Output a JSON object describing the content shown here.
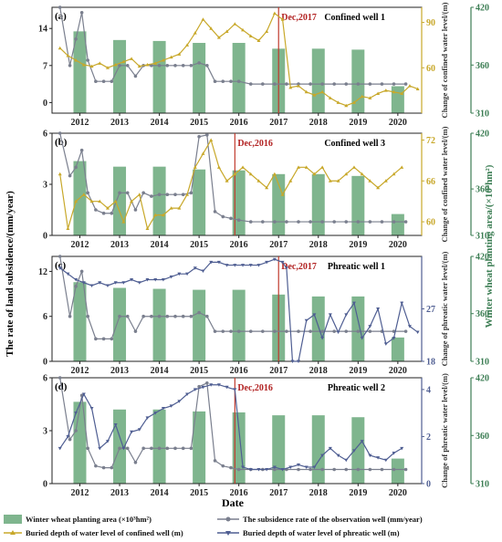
{
  "figure": {
    "date_label": "Date",
    "left_axis_label": "The rate of land subsidence/(mm/year)",
    "right_axis_label": "Winter wheat planting area/(×10³hm²)",
    "legend": {
      "area": "Winter wheat planting area (×10³hm²)",
      "subsidence": "The subsidence rate of the observation well (mm/year)",
      "confined": "Buried depth of water level of confined well (m)",
      "phreatic": "Buried depth of water level of phreatic well (m)"
    }
  },
  "colors": {
    "bar": "#7fb58e",
    "subsidence": "#7a7f8e",
    "confined": "#c8a82a",
    "phreatic": "#4f5e92",
    "marker": "#c0392b"
  },
  "chart_data": [
    {
      "type": "bar",
      "panel": "(a)",
      "title": "Confined well 1",
      "annotation": "Dec,2017",
      "annotation_x": 2017.0,
      "xlim": [
        2011.3,
        2020.6
      ],
      "categories": [
        "2012",
        "2013",
        "2014",
        "2015",
        "2016",
        "2017",
        "2018",
        "2019",
        "2020"
      ],
      "left_axis": {
        "ylim": [
          -2,
          18
        ],
        "ticks": [
          0,
          7,
          14
        ],
        "tick_labels": [
          "0",
          "7",
          "14"
        ]
      },
      "right_axis": {
        "label": "Change of confined water level/(m)",
        "ylim": [
          30,
          100
        ],
        "ticks": [
          60,
          90
        ],
        "tick_labels": [
          "60",
          "90"
        ],
        "color": "#c8a82a"
      },
      "area_axis": {
        "ylim": [
          310,
          420
        ],
        "ticks": [
          310,
          360,
          420
        ],
        "tick_labels": [
          "310",
          "360",
          "420"
        ]
      },
      "bars": [
        395,
        386,
        385,
        383,
        383,
        377,
        377,
        376,
        338
      ],
      "subsidence": {
        "x": [
          2011.5,
          2011.75,
          2011.9,
          2012.05,
          2012.2,
          2012.4,
          2012.6,
          2012.8,
          2013.0,
          2013.2,
          2013.4,
          2013.6,
          2013.8,
          2014.0,
          2014.2,
          2014.4,
          2014.6,
          2014.8,
          2015.0,
          2015.2,
          2015.4,
          2015.6,
          2015.8,
          2016.0,
          2016.3,
          2016.6,
          2016.9,
          2017.2,
          2017.5,
          2017.8,
          2018.1,
          2018.4,
          2018.7,
          2019.0,
          2019.3,
          2019.6,
          2019.9,
          2020.2
        ],
        "y": [
          18,
          7,
          12,
          17,
          8,
          4,
          4,
          4,
          7,
          7,
          5,
          7,
          7,
          7,
          7,
          7,
          7,
          7,
          7.5,
          7,
          4,
          4,
          4,
          4,
          3.5,
          3.5,
          3.5,
          3.5,
          3.5,
          3.5,
          3.5,
          3.5,
          3.5,
          3.5,
          3.5,
          3.5,
          3.5,
          3.5
        ]
      },
      "confined": {
        "x": [
          2011.5,
          2011.7,
          2011.9,
          2012.1,
          2012.3,
          2012.5,
          2012.7,
          2012.9,
          2013.1,
          2013.3,
          2013.5,
          2013.7,
          2013.9,
          2014.1,
          2014.3,
          2014.5,
          2014.7,
          2014.9,
          2015.1,
          2015.3,
          2015.5,
          2015.7,
          2015.9,
          2016.1,
          2016.3,
          2016.5,
          2016.7,
          2016.9,
          2017.1,
          2017.3,
          2017.5,
          2017.7,
          2017.9,
          2018.1,
          2018.3,
          2018.5,
          2018.7,
          2018.9,
          2019.1,
          2019.3,
          2019.5,
          2019.7,
          2019.9,
          2020.1,
          2020.3,
          2020.5
        ],
        "y": [
          73,
          68,
          65,
          62,
          61,
          63,
          60,
          62,
          64,
          66,
          61,
          62,
          63,
          65,
          67,
          69,
          75,
          83,
          92,
          86,
          80,
          84,
          89,
          85,
          81,
          78,
          84,
          96,
          92,
          47,
          48,
          44,
          42,
          44,
          40,
          37,
          35,
          37,
          41,
          40,
          43,
          45,
          44,
          43,
          48,
          46
        ]
      }
    },
    {
      "type": "bar",
      "panel": "(b)",
      "title": "Confined well 3",
      "annotation": "Dec,2016",
      "annotation_x": 2015.9,
      "xlim": [
        2011.3,
        2020.6
      ],
      "categories": [
        "2012",
        "2013",
        "2014",
        "2015",
        "2016",
        "2017",
        "2018",
        "2019",
        "2020"
      ],
      "left_axis": {
        "ylim": [
          0,
          6
        ],
        "ticks": [
          0,
          3,
          6
        ],
        "tick_labels": [
          "0",
          "3",
          "6"
        ]
      },
      "right_axis": {
        "label": "Change of confined water level/(m)",
        "ylim": [
          58,
          73
        ],
        "ticks": [
          60,
          66,
          72
        ],
        "tick_labels": [
          "60",
          "66",
          "72"
        ],
        "color": "#c8a82a"
      },
      "area_axis": {
        "ylim": [
          310,
          420
        ],
        "ticks": [
          310,
          360,
          420
        ],
        "tick_labels": [
          "310",
          "360",
          "420"
        ]
      },
      "bars": [
        390,
        384,
        384,
        381,
        380,
        376,
        376,
        374,
        333
      ],
      "subsidence": {
        "x": [
          2011.5,
          2011.75,
          2011.9,
          2012.05,
          2012.2,
          2012.4,
          2012.6,
          2012.8,
          2013.0,
          2013.2,
          2013.4,
          2013.6,
          2013.8,
          2014.0,
          2014.2,
          2014.4,
          2014.6,
          2014.8,
          2015.0,
          2015.2,
          2015.4,
          2015.6,
          2015.8,
          2016.0,
          2016.3,
          2016.6,
          2016.9,
          2017.2,
          2017.5,
          2017.8,
          2018.1,
          2018.4,
          2018.7,
          2019.0,
          2019.3,
          2019.6,
          2019.9,
          2020.2
        ],
        "y": [
          6,
          3.5,
          4,
          5,
          2.5,
          1.5,
          1.3,
          1.3,
          2.5,
          2.5,
          1.5,
          2.5,
          2.3,
          2.4,
          2.4,
          2.4,
          2.4,
          2.5,
          5.8,
          5.9,
          1.4,
          1.1,
          1,
          0.9,
          0.8,
          0.8,
          0.8,
          0.8,
          0.8,
          0.8,
          0.8,
          0.8,
          0.8,
          0.8,
          0.8,
          0.8,
          0.8,
          0.8
        ]
      },
      "confined": {
        "x": [
          2011.5,
          2011.7,
          2011.9,
          2012.1,
          2012.3,
          2012.5,
          2012.7,
          2012.9,
          2013.1,
          2013.3,
          2013.5,
          2013.7,
          2013.9,
          2014.1,
          2014.3,
          2014.5,
          2014.7,
          2014.9,
          2015.1,
          2015.3,
          2015.5,
          2015.7,
          2015.9,
          2016.1,
          2016.3,
          2016.5,
          2016.7,
          2016.9,
          2017.1,
          2017.3,
          2017.5,
          2017.7,
          2017.9,
          2018.1,
          2018.3,
          2018.5,
          2018.7,
          2018.9,
          2019.1,
          2019.3,
          2019.5,
          2019.7,
          2019.9,
          2020.1
        ],
        "y": [
          67,
          59,
          63,
          64,
          63,
          63,
          62,
          63,
          60,
          63,
          64,
          59,
          61,
          61,
          62,
          62,
          64,
          68,
          70,
          72,
          68,
          66,
          67,
          68,
          67,
          66,
          65,
          67,
          64,
          66,
          68,
          68,
          67,
          68,
          66,
          66,
          67,
          68,
          67,
          66,
          65,
          66,
          67,
          68
        ]
      }
    },
    {
      "type": "bar",
      "panel": "(c)",
      "title": "Phreatic well 1",
      "annotation": "Dec,2017",
      "annotation_x": 2017.0,
      "xlim": [
        2011.3,
        2020.6
      ],
      "categories": [
        "2012",
        "2013",
        "2014",
        "2015",
        "2016",
        "2017",
        "2018",
        "2019",
        "2020"
      ],
      "left_axis": {
        "ylim": [
          0,
          14
        ],
        "ticks": [
          0,
          6,
          12
        ],
        "tick_labels": [
          "0",
          "6",
          "12"
        ]
      },
      "right_axis": {
        "label": "Change of phreatic water level/(m)",
        "ylim": [
          18,
          36
        ],
        "ticks": [
          18,
          27
        ],
        "tick_labels": [
          "18",
          "27"
        ],
        "color": "#4f5e92"
      },
      "area_axis": {
        "ylim": [
          310,
          420
        ],
        "ticks": [
          310,
          360,
          420
        ],
        "tick_labels": [
          "310",
          "360",
          "420"
        ]
      },
      "bars": [
        393,
        387,
        386,
        385,
        385,
        380,
        378,
        378,
        335
      ],
      "subsidence": {
        "x": [
          2011.5,
          2011.75,
          2011.9,
          2012.05,
          2012.2,
          2012.4,
          2012.6,
          2012.8,
          2013.0,
          2013.2,
          2013.4,
          2013.6,
          2013.8,
          2014.0,
          2014.2,
          2014.4,
          2014.6,
          2014.8,
          2015.0,
          2015.2,
          2015.4,
          2015.6,
          2015.8,
          2016.0,
          2016.3,
          2016.6,
          2016.9,
          2017.2,
          2017.5,
          2017.8,
          2018.1,
          2018.4,
          2018.7,
          2019.0,
          2019.3,
          2019.6,
          2019.9,
          2020.2
        ],
        "y": [
          14,
          6,
          10,
          12,
          6,
          3,
          3,
          3,
          6,
          6,
          4,
          6,
          6,
          6,
          6,
          6,
          6,
          6,
          6.5,
          6,
          4,
          4,
          4,
          4,
          4,
          4,
          4,
          4,
          4,
          4,
          4,
          4,
          4,
          4,
          4,
          4,
          4,
          4
        ],
        "extra": true
      },
      "phreatic": {
        "x": [
          2011.5,
          2011.7,
          2011.9,
          2012.1,
          2012.3,
          2012.5,
          2012.7,
          2012.9,
          2013.1,
          2013.3,
          2013.5,
          2013.7,
          2013.9,
          2014.1,
          2014.3,
          2014.5,
          2014.7,
          2014.9,
          2015.1,
          2015.3,
          2015.5,
          2015.7,
          2015.9,
          2016.1,
          2016.3,
          2016.5,
          2016.7,
          2016.9,
          2017.1,
          2017.2,
          2017.35,
          2017.5,
          2017.7,
          2017.9,
          2018.1,
          2018.3,
          2018.5,
          2018.7,
          2018.9,
          2019.1,
          2019.3,
          2019.5,
          2019.7,
          2019.9,
          2020.1,
          2020.3,
          2020.5
        ],
        "y": [
          34,
          33,
          32,
          31.5,
          31,
          31.5,
          31,
          31.5,
          31.5,
          32,
          31.5,
          32,
          32,
          32,
          32.5,
          33,
          33,
          34,
          33.5,
          35,
          35,
          34.5,
          34.5,
          34.5,
          34.5,
          34.5,
          35,
          35.5,
          35,
          34,
          18,
          18,
          25,
          26,
          22,
          26,
          23,
          26,
          28,
          22,
          24,
          27,
          21,
          22,
          28,
          24,
          23
        ]
      }
    },
    {
      "type": "bar",
      "panel": "(d)",
      "title": "Phreatic well 2",
      "annotation": "Dec,2016",
      "annotation_x": 2015.9,
      "xlim": [
        2011.3,
        2020.6
      ],
      "categories": [
        "2012",
        "2013",
        "2014",
        "2015",
        "2016",
        "2017",
        "2018",
        "2019",
        "2020"
      ],
      "left_axis": {
        "ylim": [
          0,
          6
        ],
        "ticks": [
          0,
          3,
          6
        ],
        "tick_labels": [
          "0",
          "3",
          "6"
        ]
      },
      "right_axis": {
        "label": "Change of phreatic water level/(m)",
        "ylim": [
          0,
          4.5
        ],
        "ticks": [
          0,
          2,
          4
        ],
        "tick_labels": [
          "0",
          "2",
          "4"
        ],
        "color": "#4f5e92"
      },
      "area_axis": {
        "ylim": [
          310,
          420
        ],
        "ticks": [
          310,
          360,
          420
        ],
        "tick_labels": [
          "310",
          "360",
          "420"
        ]
      },
      "bars": [
        395,
        387,
        387,
        385,
        384,
        381,
        381,
        379,
        336
      ],
      "subsidence": {
        "x": [
          2011.5,
          2011.75,
          2011.9,
          2012.05,
          2012.2,
          2012.4,
          2012.6,
          2012.8,
          2013.0,
          2013.2,
          2013.4,
          2013.6,
          2013.8,
          2014.0,
          2014.2,
          2014.4,
          2014.6,
          2014.8,
          2015.0,
          2015.2,
          2015.4,
          2015.6,
          2015.8,
          2016.0,
          2016.3,
          2016.6,
          2016.9,
          2017.2,
          2017.5,
          2017.8,
          2018.1,
          2018.4,
          2018.7,
          2019.0,
          2019.3,
          2019.6,
          2019.9,
          2020.2
        ],
        "y": [
          6,
          2.5,
          3,
          5,
          2,
          1,
          0.9,
          0.9,
          2,
          2,
          1.2,
          2,
          2,
          2,
          2,
          2,
          2,
          2,
          5.5,
          5.7,
          1.3,
          1,
          0.9,
          0.8,
          0.8,
          0.8,
          0.8,
          0.8,
          0.8,
          0.8,
          0.8,
          0.8,
          0.8,
          0.8,
          0.8,
          0.8,
          0.8,
          0.8
        ]
      },
      "phreatic": {
        "x": [
          2011.5,
          2011.7,
          2011.9,
          2012.1,
          2012.3,
          2012.5,
          2012.7,
          2012.9,
          2013.1,
          2013.3,
          2013.5,
          2013.7,
          2013.9,
          2014.1,
          2014.3,
          2014.5,
          2014.7,
          2014.9,
          2015.1,
          2015.3,
          2015.5,
          2015.7,
          2015.9,
          2016.1,
          2016.3,
          2016.5,
          2016.7,
          2016.9,
          2017.1,
          2017.3,
          2017.5,
          2017.7,
          2017.9,
          2018.1,
          2018.3,
          2018.5,
          2018.7,
          2018.9,
          2019.1,
          2019.3,
          2019.5,
          2019.7,
          2019.9,
          2020.1
        ],
        "y": [
          1.5,
          2,
          3,
          3.8,
          3.2,
          1.5,
          1.8,
          2.5,
          1.5,
          2.2,
          2.3,
          2.8,
          3,
          3.2,
          3.3,
          3.5,
          3.8,
          4,
          4.1,
          4.2,
          4.2,
          4.1,
          4,
          0.7,
          0.6,
          0.6,
          0.6,
          0.7,
          0.6,
          0.7,
          0.8,
          0.7,
          0.7,
          1.2,
          1.5,
          1.2,
          1,
          1.4,
          1.8,
          1.2,
          1.1,
          1,
          1.3,
          1.5
        ]
      }
    }
  ]
}
